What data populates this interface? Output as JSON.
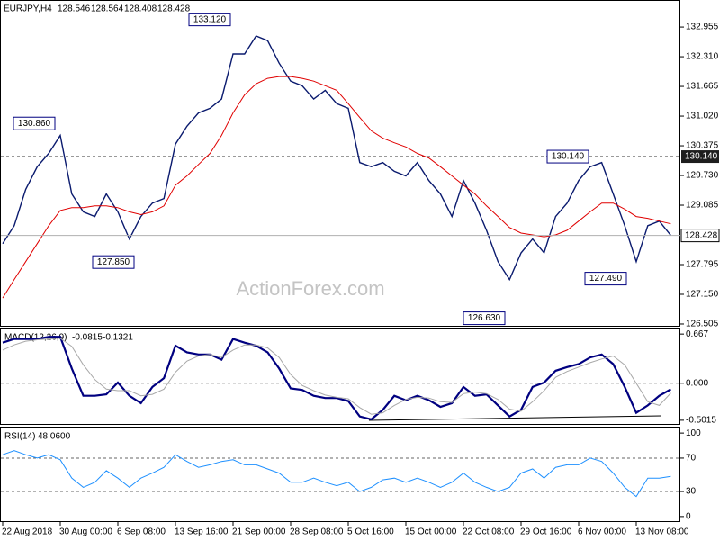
{
  "chart_data": [
    {
      "type": "line",
      "title": "EURJPY,H4",
      "ohlc_last": [
        128.546,
        128.564,
        128.408
      ],
      "watermark": "ActionForex.com",
      "categories": [
        "22 Aug 2018",
        null,
        null,
        null,
        null,
        "30 Aug 00:00",
        null,
        null,
        null,
        null,
        "6 Sep 08:00",
        null,
        null,
        null,
        null,
        "13 Sep 16:00",
        null,
        null,
        null,
        null,
        "21 Sep 00:00",
        null,
        null,
        null,
        null,
        "28 Sep 08:00",
        null,
        null,
        null,
        null,
        "5 Oct 16:00",
        null,
        null,
        null,
        null,
        "15 Oct 00:00",
        null,
        null,
        null,
        null,
        "22 Oct 08:00",
        null,
        null,
        null,
        null,
        "29 Oct 16:00",
        null,
        null,
        null,
        null,
        "6 Nov 00:00",
        null,
        null,
        null,
        null,
        "13 Nov 08:00",
        null,
        null,
        null
      ],
      "series": [
        {
          "color": "#0a1a6e",
          "values": [
            128.25,
            128.64,
            129.43,
            129.92,
            130.21,
            130.6,
            129.33,
            128.94,
            128.84,
            129.33,
            128.94,
            128.35,
            128.84,
            129.13,
            129.23,
            130.41,
            130.8,
            131.09,
            131.19,
            131.39,
            132.37,
            132.37,
            132.76,
            132.66,
            132.17,
            131.78,
            131.68,
            131.39,
            131.58,
            131.29,
            131.19,
            130.01,
            129.92,
            130.01,
            129.82,
            129.72,
            130.01,
            129.62,
            129.33,
            128.84,
            129.62,
            129.13,
            128.54,
            127.86,
            127.47,
            128.05,
            128.35,
            128.05,
            128.84,
            129.13,
            129.62,
            129.92,
            130.01,
            129.33,
            128.64,
            127.86,
            128.64,
            128.74,
            128.428
          ]
        },
        {
          "color": "#e00000",
          "values": [
            127.07,
            127.47,
            127.86,
            128.25,
            128.64,
            128.97,
            129.03,
            129.03,
            129.07,
            129.07,
            129.03,
            128.94,
            128.88,
            128.94,
            129.07,
            129.52,
            129.72,
            129.97,
            130.21,
            130.6,
            131.09,
            131.48,
            131.72,
            131.84,
            131.88,
            131.88,
            131.84,
            131.78,
            131.68,
            131.58,
            131.29,
            130.99,
            130.7,
            130.54,
            130.44,
            130.35,
            130.21,
            130.11,
            129.92,
            129.72,
            129.52,
            129.33,
            129.07,
            128.84,
            128.6,
            128.48,
            128.44,
            128.4,
            128.44,
            128.54,
            128.74,
            128.94,
            129.13,
            129.13,
            129.0,
            128.84,
            128.8,
            128.74,
            128.68
          ]
        }
      ],
      "annotations": [
        {
          "value": 133.12,
          "label": "133.120"
        },
        {
          "value": 130.86,
          "label": "130.860"
        },
        {
          "value": 127.85,
          "label": "127.850"
        },
        {
          "value": 126.63,
          "label": "126.630"
        },
        {
          "value": 130.14,
          "label": "130.140"
        },
        {
          "value": 127.49,
          "label": "127.490"
        }
      ],
      "hline": {
        "value": 130.14,
        "label": "130.140"
      },
      "ylim": [
        126.446,
        133.543
      ],
      "yticks": [
        132.955,
        {
          "value": 132.31,
          "label": "132.310"
        },
        131.665,
        {
          "value": 131.02,
          "label": "131.020"
        },
        130.375,
        {
          "value": 129.73,
          "label": "129.730"
        },
        129.085,
        127.795,
        {
          "value": 127.15,
          "label": "127.150"
        },
        126.505
      ]
    },
    {
      "type": "line",
      "title": "MACD(12,26,9)",
      "series": [
        {
          "color": "#000080",
          "values": [
            0.55,
            0.6,
            0.6,
            0.6,
            0.63,
            0.63,
            0.2,
            -0.17,
            -0.17,
            -0.15,
            0.01,
            -0.17,
            -0.27,
            -0.05,
            0.07,
            0.51,
            0.42,
            0.39,
            0.39,
            0.32,
            0.6,
            0.55,
            0.51,
            0.42,
            0.2,
            -0.07,
            -0.09,
            -0.17,
            -0.2,
            -0.2,
            -0.24,
            -0.45,
            -0.49,
            -0.36,
            -0.17,
            -0.23,
            -0.17,
            -0.23,
            -0.32,
            -0.27,
            -0.05,
            -0.17,
            -0.15,
            -0.3,
            -0.45,
            -0.36,
            -0.05,
            0.01,
            0.17,
            0.22,
            0.26,
            0.35,
            0.39,
            0.26,
            -0.05,
            -0.4,
            -0.3,
            -0.17,
            -0.0815
          ]
        },
        {
          "color": "#a8a8a8",
          "values": [
            0.45,
            0.52,
            0.57,
            0.59,
            0.6,
            0.61,
            0.5,
            0.25,
            0.05,
            -0.08,
            -0.1,
            -0.1,
            -0.17,
            -0.15,
            -0.08,
            0.15,
            0.3,
            0.37,
            0.39,
            0.35,
            0.45,
            0.52,
            0.52,
            0.48,
            0.35,
            0.12,
            -0.03,
            -0.1,
            -0.16,
            -0.19,
            -0.21,
            -0.33,
            -0.42,
            -0.4,
            -0.3,
            -0.22,
            -0.19,
            -0.2,
            -0.25,
            -0.26,
            -0.14,
            -0.12,
            -0.14,
            -0.22,
            -0.35,
            -0.38,
            -0.25,
            -0.1,
            0.08,
            0.16,
            0.22,
            0.28,
            0.33,
            0.37,
            0.25,
            0.0,
            -0.25,
            -0.3,
            -0.1321
          ]
        }
      ],
      "levels": [
        0
      ],
      "ylim": [
        -0.564,
        0.742
      ],
      "yticks": [
        0.667,
        {
          "value": 0,
          "label": "0.000"
        },
        -0.5015
      ]
    },
    {
      "type": "line",
      "title": "RSI(14)",
      "current": {
        "value": 48.06,
        "label": "48.0600"
      },
      "series": [
        {
          "color": "#1e90ff",
          "values": [
            74,
            79,
            74,
            70,
            74,
            68,
            46,
            35,
            41,
            55,
            46,
            35,
            46,
            52,
            59,
            74,
            66,
            59,
            62,
            66,
            68,
            62,
            62,
            57,
            52,
            41,
            41,
            46,
            41,
            37,
            41,
            30,
            35,
            44,
            46,
            41,
            46,
            41,
            35,
            41,
            52,
            41,
            35,
            30,
            35,
            52,
            57,
            46,
            59,
            62,
            62,
            70,
            66,
            52,
            35,
            24,
            46,
            46,
            48.06
          ]
        }
      ],
      "levels": [
        70,
        30
      ],
      "ylim": [
        -6.6,
        106.6
      ],
      "yticks": [
        100,
        70,
        30,
        0
      ]
    }
  ]
}
